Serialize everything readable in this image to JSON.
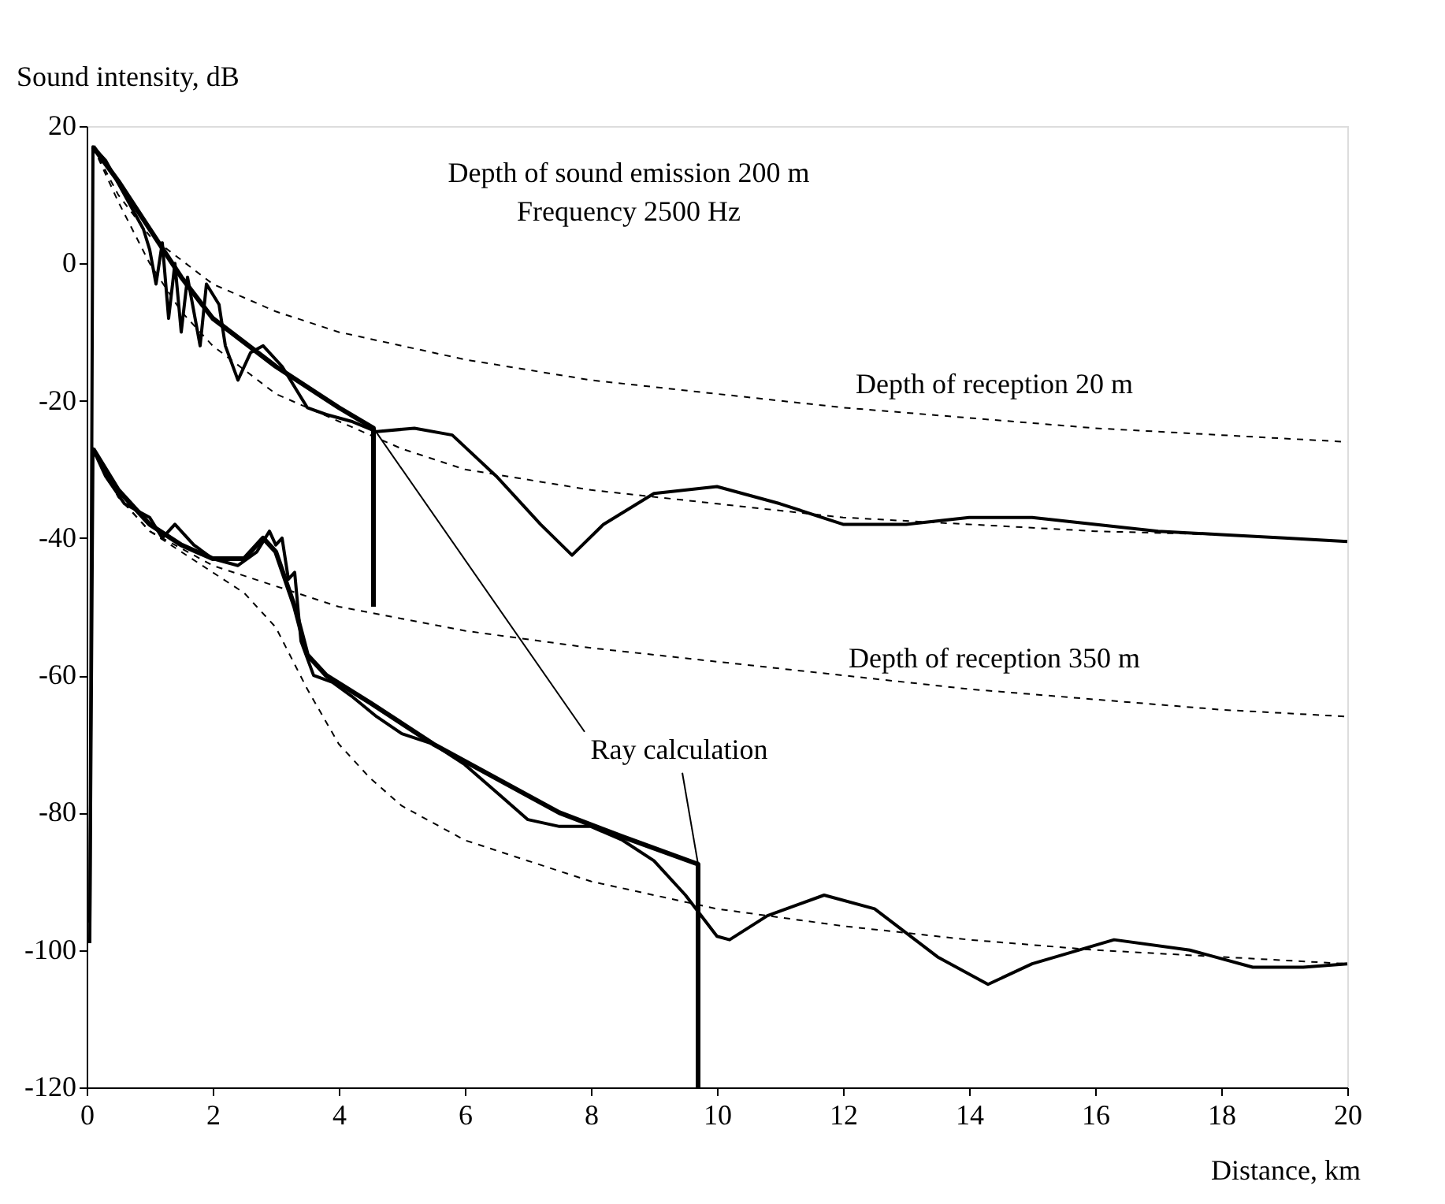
{
  "chart_data": {
    "type": "line",
    "xlabel": "Distance, km",
    "ylabel": "Sound intensity, dB",
    "xlim": [
      0,
      20
    ],
    "xticks": [
      0,
      2,
      4,
      6,
      8,
      10,
      12,
      14,
      16,
      18,
      20
    ],
    "ylim": [
      -120,
      20
    ],
    "yticks": [
      -120,
      -100,
      -80,
      -60,
      -40,
      -20,
      0,
      20
    ],
    "grid": false,
    "marker": "none",
    "annotations": [
      "Depth of sound emission 200 m",
      "Frequency 2500 Hz",
      "Depth of reception 20 m",
      "Depth of reception 350 m",
      {
        "text": "Ray calculation",
        "x": 9.7,
        "y": -87.5
      }
    ],
    "series": [
      {
        "color": "#000000",
        "line_style": "dashed",
        "x": [
          0.1,
          0.5,
          1,
          2,
          3,
          4,
          6,
          8,
          10,
          12,
          14,
          16,
          18,
          20
        ],
        "values": [
          17,
          10,
          4,
          -3,
          -7,
          -10,
          -14,
          -17,
          -19,
          -21,
          -22.5,
          -24,
          -25,
          -26
        ]
      },
      {
        "color": "#000000",
        "line_style": "dashed",
        "x": [
          0.1,
          0.5,
          1,
          1.5,
          2,
          3,
          4,
          5,
          6,
          8,
          10,
          12,
          14,
          16,
          18,
          20
        ],
        "values": [
          17,
          9,
          0,
          -7,
          -12,
          -19,
          -23,
          -27,
          -30,
          -33,
          -35,
          -37,
          -38,
          -39,
          -39.5,
          -40.5
        ]
      },
      {
        "color": "#000000",
        "line_style": "solid",
        "x": [
          0.05,
          0.1,
          0.3,
          0.6,
          0.9,
          1.0,
          1.1,
          1.2,
          1.3,
          1.4,
          1.5,
          1.6,
          1.8,
          1.9,
          2.1,
          2.2,
          2.4,
          2.6,
          2.8,
          3.1,
          3.5,
          3.8,
          4.2,
          4.6,
          5.2,
          5.8,
          6.5,
          7.2,
          7.7,
          8.2,
          9,
          10,
          11,
          12,
          13,
          14,
          15,
          16,
          17,
          18,
          19,
          20
        ],
        "values": [
          -99,
          17,
          15,
          10,
          5,
          2,
          -3,
          3,
          -8,
          0,
          -10,
          -2,
          -12,
          -3,
          -6,
          -12,
          -17,
          -13,
          -12,
          -15,
          -21,
          -22,
          -23,
          -24.5,
          -24,
          -25,
          -31,
          -38,
          -42.5,
          -38,
          -33.5,
          -32.5,
          -35,
          -38,
          -38,
          -37,
          -37,
          -38,
          -39,
          -39.5,
          -40,
          -40.5
        ]
      },
      {
        "color": "#000000",
        "line_style": "solid",
        "x": [
          0.1,
          0.5,
          1,
          1.5,
          2,
          3,
          4,
          4.55,
          4.55
        ],
        "values": [
          17,
          12,
          5,
          -2,
          -8,
          -15,
          -21,
          -24,
          -50
        ]
      },
      {
        "color": "#000000",
        "line_style": "dashed",
        "x": [
          0.1,
          0.5,
          1,
          2,
          3,
          4,
          6,
          8,
          10,
          12,
          14,
          16,
          18,
          20
        ],
        "values": [
          -27,
          -34,
          -39,
          -44,
          -47,
          -50,
          -53.5,
          -56,
          -58,
          -60,
          -62,
          -63.5,
          -65,
          -66
        ]
      },
      {
        "color": "#000000",
        "line_style": "dashed",
        "x": [
          0.1,
          0.5,
          1,
          2,
          2.5,
          3,
          3.5,
          4,
          4.5,
          5,
          6,
          7,
          8,
          10,
          12,
          14,
          16,
          18,
          20
        ],
        "values": [
          -27,
          -34,
          -39,
          -45,
          -48,
          -53,
          -62,
          -70,
          -75,
          -79,
          -84,
          -87,
          -90,
          -94,
          -96.5,
          -98.5,
          -100,
          -101,
          -102
        ]
      },
      {
        "color": "#000000",
        "line_style": "solid",
        "x": [
          0.05,
          0.1,
          0.3,
          0.6,
          1,
          1.2,
          1.4,
          1.7,
          2,
          2.4,
          2.7,
          2.9,
          3.0,
          3.1,
          3.2,
          3.3,
          3.4,
          3.6,
          3.9,
          4.2,
          4.6,
          5,
          5.5,
          6,
          6.5,
          7,
          7.5,
          8,
          8.5,
          9,
          9.5,
          10,
          10.2,
          10.8,
          11.7,
          12.5,
          13.5,
          14.3,
          15,
          16.3,
          17.5,
          18.5,
          19.3,
          20
        ],
        "values": [
          -96,
          -27,
          -31,
          -35,
          -37,
          -40,
          -38,
          -41,
          -43,
          -44,
          -42,
          -39,
          -41,
          -40,
          -46,
          -45,
          -55,
          -60,
          -61,
          -63,
          -66,
          -68.5,
          -70,
          -73,
          -77,
          -81,
          -82,
          -82,
          -84,
          -87,
          -92,
          -98,
          -98.5,
          -95,
          -92,
          -94,
          -101,
          -105,
          -102,
          -98.5,
          -100,
          -102.5,
          -102.5,
          -102
        ]
      },
      {
        "color": "#000000",
        "line_style": "solid",
        "x": [
          0.1,
          0.5,
          1,
          1.5,
          2,
          2.5,
          2.8,
          3.0,
          3.3,
          3.5,
          3.8,
          4.5,
          5.5,
          6.5,
          7.5,
          8.5,
          9.7,
          9.7
        ],
        "values": [
          -27,
          -33,
          -38,
          -41,
          -43,
          -43,
          -40,
          -42,
          -50,
          -57,
          -60,
          -64,
          -70,
          -75,
          -80,
          -83.5,
          -87.5,
          -120
        ]
      }
    ]
  }
}
